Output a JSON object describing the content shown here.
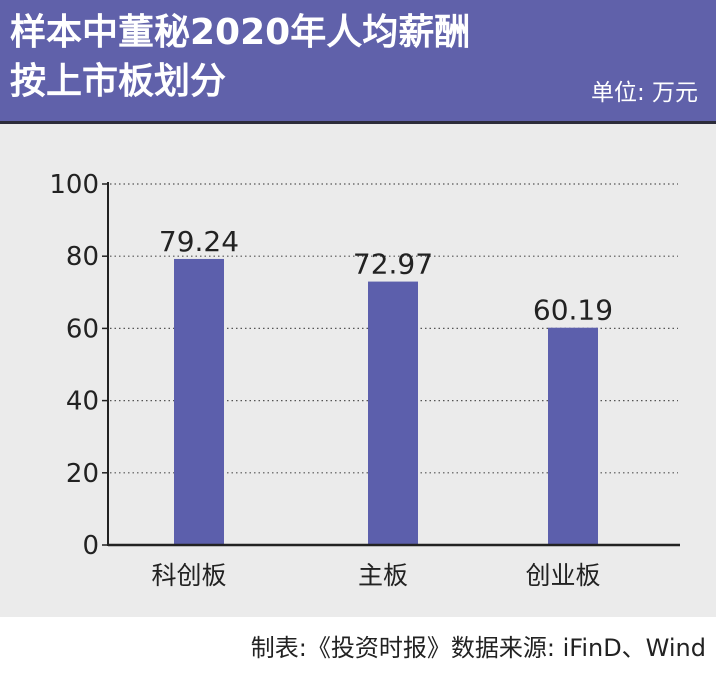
{
  "header": {
    "title_line1": "样本中董秘2020年人均薪酬",
    "title_line2": "按上市板划分",
    "unit": "单位: 万元"
  },
  "footer": {
    "source": "制表:《投资时报》数据来源: iFinD、Wind"
  },
  "colors": {
    "header_bg": "#6061aa",
    "bar": "#5c5fac",
    "plot_bg": "#ebebeb"
  },
  "chart_data": {
    "type": "bar",
    "categories": [
      "科创板",
      "主板",
      "创业板"
    ],
    "values": [
      79.24,
      72.97,
      60.19
    ],
    "value_labels": [
      "79.24",
      "72.97",
      "60.19"
    ],
    "ylim": [
      0,
      100
    ],
    "yticks": [
      "0",
      "20",
      "40",
      "60",
      "80",
      "100"
    ],
    "grid": "dotted horizontal",
    "legend": "none"
  }
}
